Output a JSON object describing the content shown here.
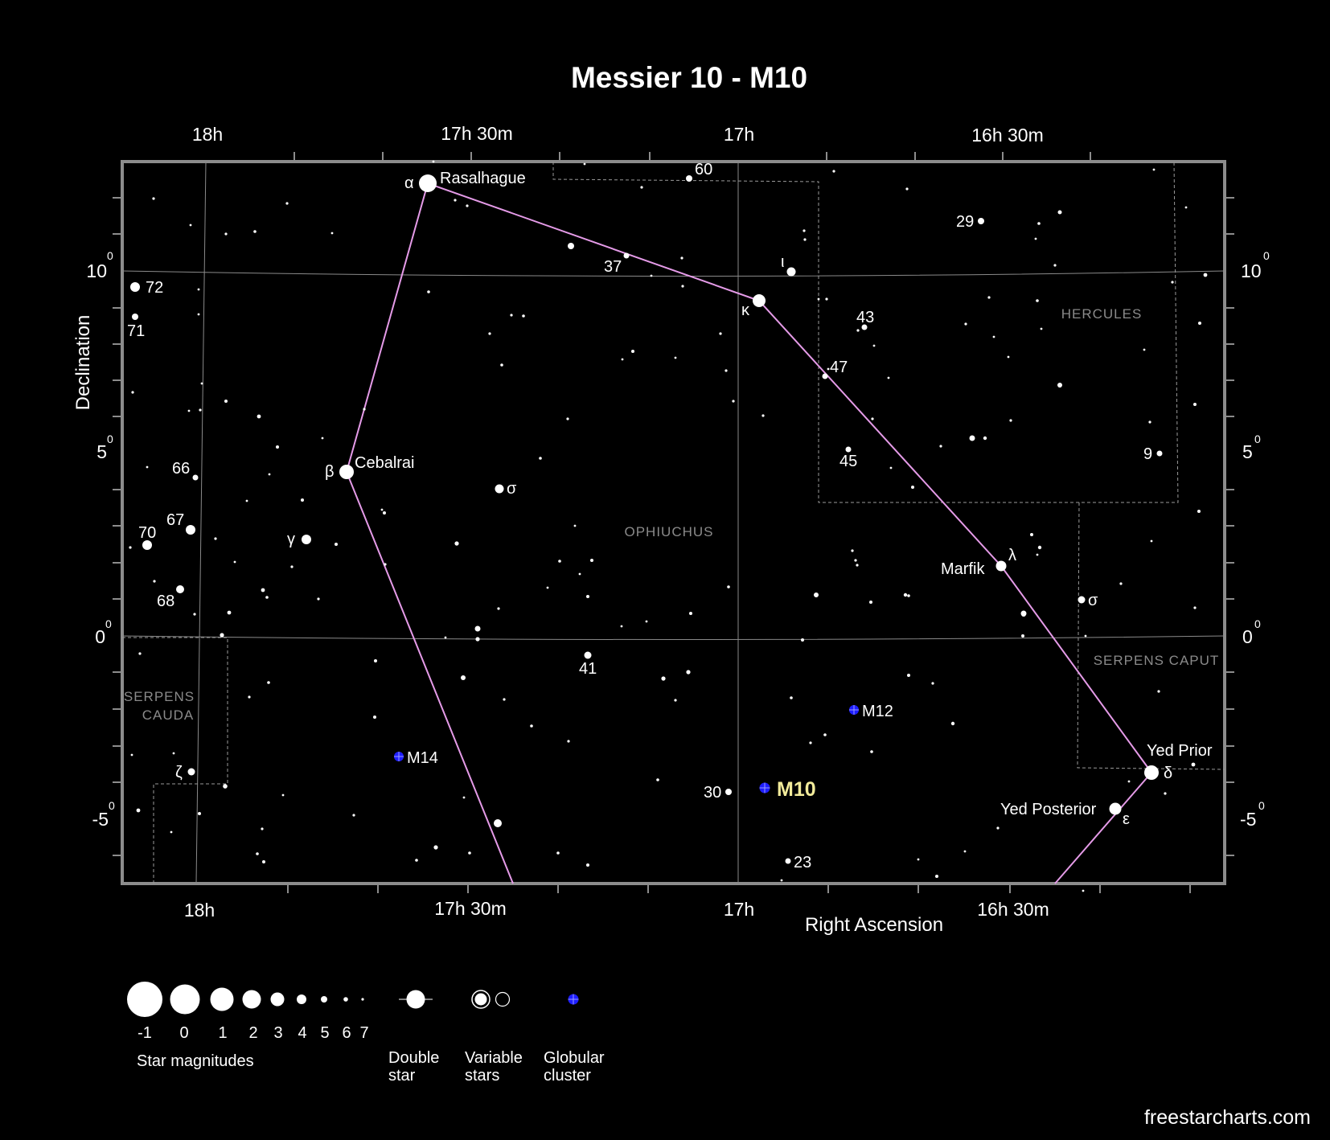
{
  "title": "Messier 10 - M10",
  "axes": {
    "x_label": "Right Ascension",
    "y_label": "Declination",
    "ra_ticks_top": [
      "18h",
      "17h 30m",
      "17h",
      "16h 30m"
    ],
    "ra_ticks_bottom": [
      "18h",
      "17h 30m",
      "17h",
      "16h 30m"
    ],
    "dec_ticks_left": [
      "10",
      "5",
      "0",
      "-5"
    ],
    "dec_ticks_right": [
      "10",
      "5",
      "0",
      "-5"
    ],
    "dec_superscript": "0"
  },
  "constellations": {
    "ophiuchus": "OPHIUCHUS",
    "hercules": "HERCULES",
    "serpens_caput": "SERPENS CAPUT",
    "serpens_cauda_1": "SERPENS",
    "serpens_cauda_2": "CAUDA"
  },
  "named_stars": {
    "alpha_greek": "α",
    "alpha_name": "Rasalhague",
    "beta_greek": "β",
    "beta_name": "Cebalrai",
    "kappa_greek": "κ",
    "iota_greek": "ι",
    "gamma_greek": "γ",
    "sigma_greek": "σ",
    "sigma2_greek": "σ",
    "lambda_greek": "λ",
    "lambda_name": "Marfik",
    "delta_greek": "δ",
    "delta_name": "Yed Prior",
    "epsilon_greek": "ε",
    "epsilon_name": "Yed Posterior",
    "zeta_greek": "ζ"
  },
  "numbered_stars": {
    "n60": "60",
    "n37": "37",
    "n29": "29",
    "n72": "72",
    "n71": "71",
    "n43": "43",
    "n47": "47",
    "n45": "45",
    "n9": "9",
    "n66": "66",
    "n67": "67",
    "n70": "70",
    "n68": "68",
    "n41": "41",
    "n30": "30",
    "n23": "23"
  },
  "clusters": {
    "m10": "M10",
    "m12": "M12",
    "m14": "M14"
  },
  "legend": {
    "magnitudes": [
      "-1",
      "0",
      "1",
      "2",
      "3",
      "4",
      "5",
      "6",
      "7"
    ],
    "magnitudes_label": "Star magnitudes",
    "double_star_1": "Double",
    "double_star_2": "star",
    "variable_1": "Variable",
    "variable_2": "stars",
    "globular_1": "Globular",
    "globular_2": "cluster"
  },
  "credit": "freestarcharts.com",
  "colors": {
    "background": "#000000",
    "constellation_line": "#e59be8",
    "cluster": "#1e1eff",
    "highlight": "#f2eb9a"
  }
}
